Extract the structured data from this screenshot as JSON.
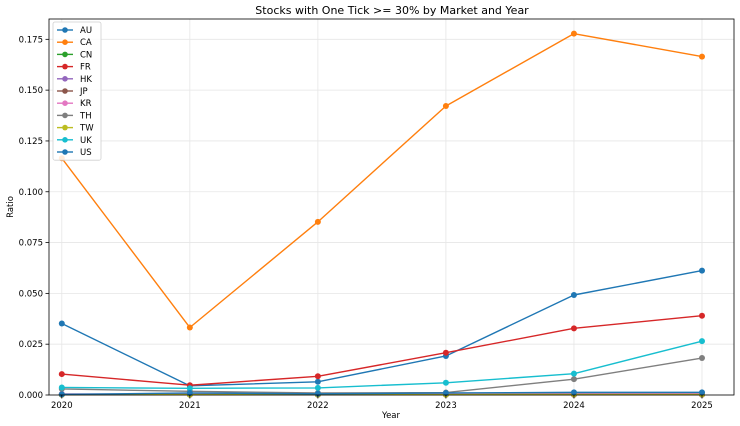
{
  "chart_data": {
    "type": "line",
    "title": "Stocks with One Tick >= 30% by Market and Year",
    "xlabel": "Year",
    "ylabel": "Ratio",
    "x": [
      2020,
      2021,
      2022,
      2023,
      2024,
      2025
    ],
    "xtick_labels": [
      "2020",
      "2021",
      "2022",
      "2023",
      "2024",
      "2025"
    ],
    "ylim": [
      0,
      0.185
    ],
    "yticks": [
      0.0,
      0.025,
      0.05,
      0.075,
      0.1,
      0.125,
      0.15,
      0.175
    ],
    "ytick_labels": [
      "0.000",
      "0.025",
      "0.050",
      "0.075",
      "0.100",
      "0.125",
      "0.150",
      "0.175"
    ],
    "grid": true,
    "legend_position": "top-left",
    "series": [
      {
        "name": "AU",
        "color": "#1f77b4",
        "values": [
          0.0352,
          0.0045,
          0.0065,
          0.0192,
          0.0492,
          0.0612
        ]
      },
      {
        "name": "CA",
        "color": "#ff7f0e",
        "values": [
          0.1165,
          0.0332,
          0.0852,
          0.1422,
          0.1778,
          0.1665
        ]
      },
      {
        "name": "CN",
        "color": "#2ca02c",
        "values": [
          0.0002,
          0.0002,
          0.0002,
          0.0003,
          0.0003,
          0.0003
        ]
      },
      {
        "name": "FR",
        "color": "#d62728",
        "values": [
          0.0103,
          0.0048,
          0.0092,
          0.0208,
          0.0328,
          0.039
        ]
      },
      {
        "name": "HK",
        "color": "#9467bd",
        "values": [
          0.0005,
          0.0004,
          0.0004,
          0.0006,
          0.0008,
          0.001
        ]
      },
      {
        "name": "JP",
        "color": "#8c564b",
        "values": [
          0.0001,
          0.0001,
          0.0001,
          0.0001,
          0.0001,
          0.0001
        ]
      },
      {
        "name": "KR",
        "color": "#e377c2",
        "values": [
          0.0003,
          0.0002,
          0.0002,
          0.0003,
          0.0004,
          0.0005
        ]
      },
      {
        "name": "TH",
        "color": "#7f7f7f",
        "values": [
          0.003,
          0.0018,
          0.001,
          0.0012,
          0.0078,
          0.0182
        ]
      },
      {
        "name": "TW",
        "color": "#bcbd22",
        "values": [
          0.0002,
          0.0002,
          0.0002,
          0.0002,
          0.0003,
          0.0003
        ]
      },
      {
        "name": "UK",
        "color": "#17becf",
        "values": [
          0.0037,
          0.0033,
          0.0035,
          0.006,
          0.0105,
          0.0265
        ]
      },
      {
        "name": "US",
        "color": "#1f77b4",
        "values": [
          0.0003,
          0.001,
          0.0006,
          0.001,
          0.0013,
          0.0013
        ]
      }
    ]
  }
}
